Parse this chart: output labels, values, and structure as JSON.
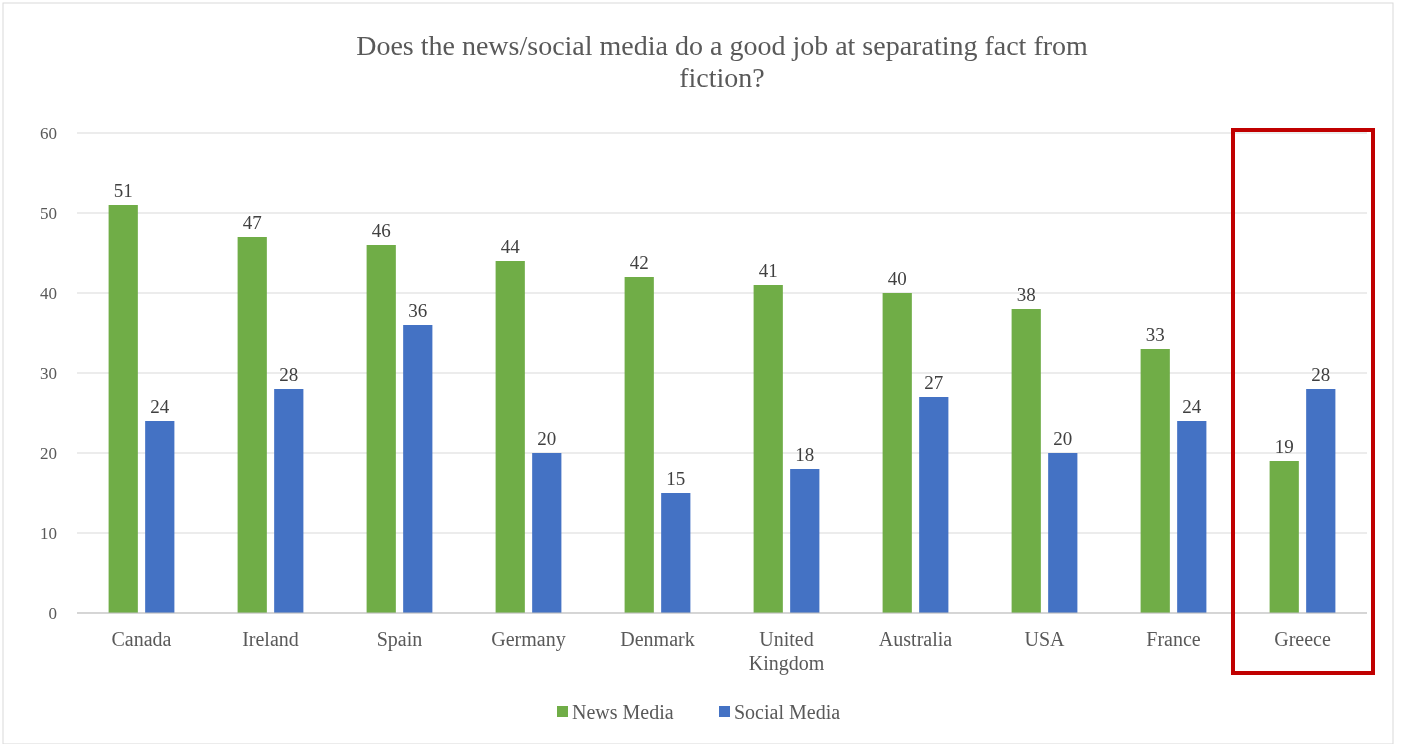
{
  "chart_data": {
    "type": "bar",
    "title": "Does the news/social media do a good job at separating fact from fiction?",
    "categories": [
      "Canada",
      "Ireland",
      "Spain",
      "Germany",
      "Denmark",
      "United Kingdom",
      "Australia",
      "USA",
      "France",
      "Greece"
    ],
    "series": [
      {
        "name": "News Media",
        "color": "#70ad47",
        "values": [
          51,
          47,
          46,
          44,
          42,
          41,
          40,
          38,
          33,
          19
        ]
      },
      {
        "name": "Social Media",
        "color": "#4472c4",
        "values": [
          24,
          28,
          36,
          20,
          15,
          18,
          27,
          20,
          24,
          28
        ]
      }
    ],
    "ylim": [
      0,
      60
    ],
    "yticks": [
      0,
      10,
      20,
      30,
      40,
      50,
      60
    ],
    "grid": "y",
    "legend": "bottom",
    "data_labels": true
  }
}
